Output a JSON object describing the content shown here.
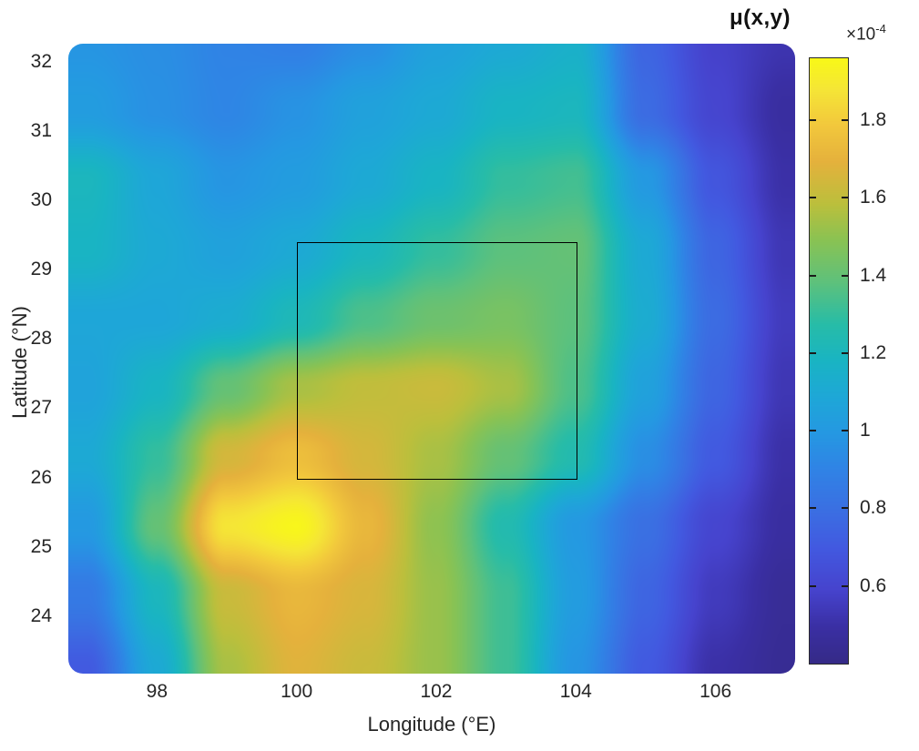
{
  "figure": {
    "background": "#ffffff",
    "text_color": "#262626"
  },
  "chart_data": {
    "type": "heatmap",
    "title": "μ(x,y)",
    "xlabel": "Longitude (°E)",
    "ylabel": "Latitude (°N)",
    "xlim": [
      96.73,
      107.14
    ],
    "ylim": [
      23.17,
      32.26
    ],
    "x_ticks": [
      98,
      100,
      102,
      104,
      106
    ],
    "y_ticks": [
      24,
      25,
      26,
      27,
      28,
      29,
      30,
      31,
      32
    ],
    "grid": {
      "lons": [
        97,
        98,
        99,
        100,
        101,
        102,
        103,
        104,
        105,
        106,
        107
      ],
      "lats": [
        32.3,
        31.3,
        30.3,
        29.3,
        28.3,
        27.3,
        26.3,
        25.3,
        24.3,
        23.2
      ],
      "values_unit": "1e-4",
      "values": [
        [
          0.98,
          0.95,
          0.9,
          0.88,
          0.95,
          1.05,
          1.1,
          1.15,
          0.75,
          0.58,
          0.52
        ],
        [
          1.02,
          0.96,
          0.91,
          0.97,
          1.05,
          1.1,
          1.18,
          1.2,
          0.78,
          0.6,
          0.48
        ],
        [
          1.2,
          1.08,
          0.98,
          1.02,
          1.1,
          1.18,
          1.3,
          1.33,
          1.0,
          0.68,
          0.5
        ],
        [
          1.18,
          1.1,
          1.05,
          1.1,
          1.2,
          1.3,
          1.38,
          1.4,
          1.1,
          0.75,
          0.53
        ],
        [
          1.08,
          1.08,
          1.12,
          1.22,
          1.35,
          1.42,
          1.45,
          1.38,
          1.12,
          0.78,
          0.55
        ],
        [
          1.06,
          1.18,
          1.4,
          1.55,
          1.6,
          1.62,
          1.55,
          1.35,
          1.05,
          0.75,
          0.53
        ],
        [
          1.1,
          1.3,
          1.65,
          1.75,
          1.65,
          1.55,
          1.4,
          1.25,
          0.95,
          0.7,
          0.5
        ],
        [
          1.0,
          1.4,
          1.88,
          1.95,
          1.72,
          1.5,
          1.25,
          1.0,
          0.8,
          0.6,
          0.48
        ],
        [
          0.85,
          1.2,
          1.62,
          1.72,
          1.66,
          1.52,
          1.32,
          1.02,
          0.75,
          0.55,
          0.45
        ],
        [
          0.7,
          1.1,
          1.55,
          1.68,
          1.62,
          1.52,
          1.32,
          0.98,
          0.7,
          0.5,
          0.44
        ]
      ]
    },
    "colorbar": {
      "label_multiplier": "×10",
      "label_exponent": "-4",
      "ticks": [
        0.6,
        0.8,
        1,
        1.2,
        1.4,
        1.6,
        1.8
      ],
      "vmin": 0.4,
      "vmax": 1.96,
      "colormap": "parula",
      "stops": [
        [
          0.0,
          "#352a87"
        ],
        [
          0.06,
          "#3a2fa4"
        ],
        [
          0.12,
          "#4643cd"
        ],
        [
          0.19,
          "#4259e0"
        ],
        [
          0.25,
          "#3b6ee2"
        ],
        [
          0.32,
          "#3083e5"
        ],
        [
          0.38,
          "#2598e2"
        ],
        [
          0.44,
          "#1ea7d7"
        ],
        [
          0.5,
          "#19b4c3"
        ],
        [
          0.56,
          "#27bca8"
        ],
        [
          0.63,
          "#5ec17c"
        ],
        [
          0.7,
          "#8ac253"
        ],
        [
          0.76,
          "#bcbf3c"
        ],
        [
          0.83,
          "#e5b13c"
        ],
        [
          0.89,
          "#f2c83c"
        ],
        [
          0.95,
          "#f5e636"
        ],
        [
          1.0,
          "#f8f818"
        ]
      ]
    },
    "overlay_rect": {
      "lon_min": 100,
      "lon_max": 104,
      "lat_min": 26,
      "lat_max": 29.4,
      "edge_color": "#000000"
    }
  }
}
